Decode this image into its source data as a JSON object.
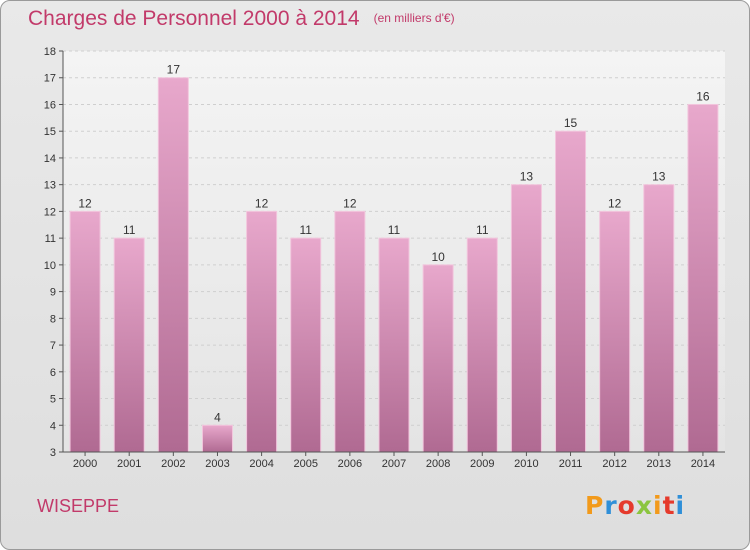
{
  "header": {
    "title": "Charges de Personnel 2000 à 2014",
    "subtitle": "(en milliers d'€)"
  },
  "footer": {
    "commune": "WISEPPE",
    "logo": "Proxiti"
  },
  "colors": {
    "title": "#c23a6a",
    "bar_top": "#e8a8cc",
    "bar_bottom": "#b06a92",
    "logo": [
      "#f29a1b",
      "#2f8fd8",
      "#e53a2c",
      "#8bc53f",
      "#f29a1b",
      "#e53a2c",
      "#2f8fd8"
    ]
  },
  "chart_data": {
    "type": "bar",
    "title": "Charges de Personnel 2000 à 2014",
    "subtitle": "(en milliers d'€)",
    "categories": [
      "2000",
      "2001",
      "2002",
      "2003",
      "2004",
      "2005",
      "2006",
      "2007",
      "2008",
      "2009",
      "2010",
      "2011",
      "2012",
      "2013",
      "2014"
    ],
    "values": [
      12,
      11,
      17,
      4,
      12,
      11,
      12,
      11,
      10,
      11,
      13,
      15,
      12,
      13,
      16
    ],
    "ylim": [
      3,
      18
    ],
    "yticks": [
      3,
      4,
      5,
      6,
      7,
      8,
      9,
      10,
      11,
      12,
      13,
      14,
      15,
      16,
      17,
      18
    ],
    "grid": true,
    "legend": "none"
  }
}
